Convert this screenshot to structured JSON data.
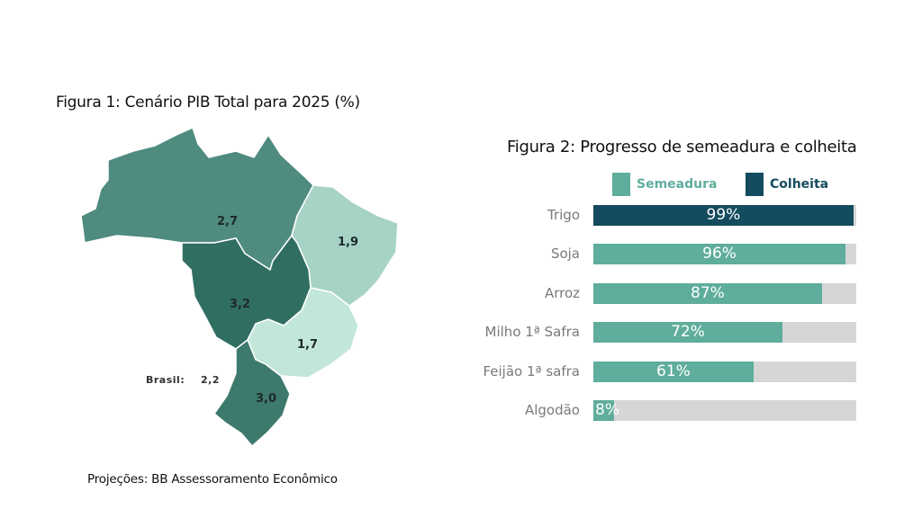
{
  "figure1": {
    "title": "Figura 1: Cenário PIB Total para 2025 (%)",
    "regions": [
      {
        "name": "Norte",
        "value": "2,7",
        "color": "#4f8b7f"
      },
      {
        "name": "Nordeste",
        "value": "1,9",
        "color": "#a6d3c6"
      },
      {
        "name": "Centro-Oeste",
        "value": "3,2",
        "color": "#316e62"
      },
      {
        "name": "Sudeste",
        "value": "1,7",
        "color": "#c3e6da"
      },
      {
        "name": "Sul",
        "value": "3,0",
        "color": "#3d7a6d"
      }
    ],
    "brasil_label": "Brasil:",
    "brasil_value": "2,2",
    "source": "Projeções: BB Assessoramento Econômico"
  },
  "figure2": {
    "title": "Figura 2: Progresso de semeadura e colheita",
    "legend": [
      {
        "label": "Semeadura",
        "color": "#5fad9c"
      },
      {
        "label": "Colheita",
        "color": "#144b5e"
      }
    ]
  },
  "chart_data": [
    {
      "type": "map",
      "title": "Figura 1: Cenário PIB Total para 2025 (%)",
      "categories": [
        "Norte",
        "Nordeste",
        "Centro-Oeste",
        "Sudeste",
        "Sul",
        "Brasil"
      ],
      "values": [
        2.7,
        1.9,
        3.2,
        1.7,
        3.0,
        2.2
      ]
    },
    {
      "type": "bar",
      "orientation": "horizontal",
      "title": "Figura 2: Progresso de semeadura e colheita",
      "categories": [
        "Trigo",
        "Soja",
        "Arroz",
        "Milho 1ª Safra",
        "Feijão 1ª safra",
        "Algodão"
      ],
      "values": [
        99,
        96,
        87,
        72,
        61,
        8
      ],
      "value_labels": [
        "99%",
        "96%",
        "87%",
        "72%",
        "61%",
        "8%"
      ],
      "stage": [
        "Colheita",
        "Semeadura",
        "Semeadura",
        "Semeadura",
        "Semeadura",
        "Semeadura"
      ],
      "xlim": [
        0,
        100
      ],
      "legend": [
        "Semeadura",
        "Colheita"
      ]
    }
  ]
}
